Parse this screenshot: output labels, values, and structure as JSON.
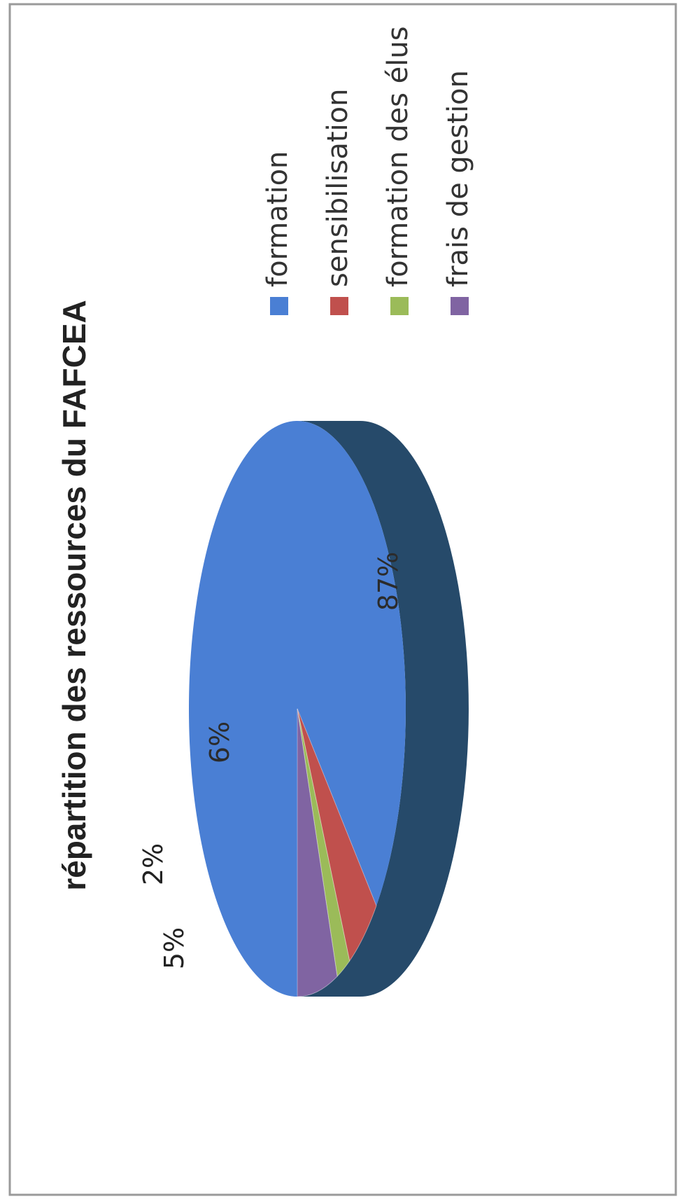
{
  "chart_data": {
    "type": "pie",
    "title": "répartition des ressources du FAFCEA",
    "categories": [
      "formation",
      "sensibilisation",
      "formation des élus",
      "frais de gestion"
    ],
    "values": [
      87,
      5,
      2,
      6
    ],
    "labels": [
      "87%",
      "5%",
      "2%",
      "6%"
    ],
    "colors": [
      "#4a7fd4",
      "#c0504d",
      "#9bbb59",
      "#8064a2"
    ],
    "side_color": "#264a6a",
    "three_d": true,
    "legend_position": "right"
  }
}
